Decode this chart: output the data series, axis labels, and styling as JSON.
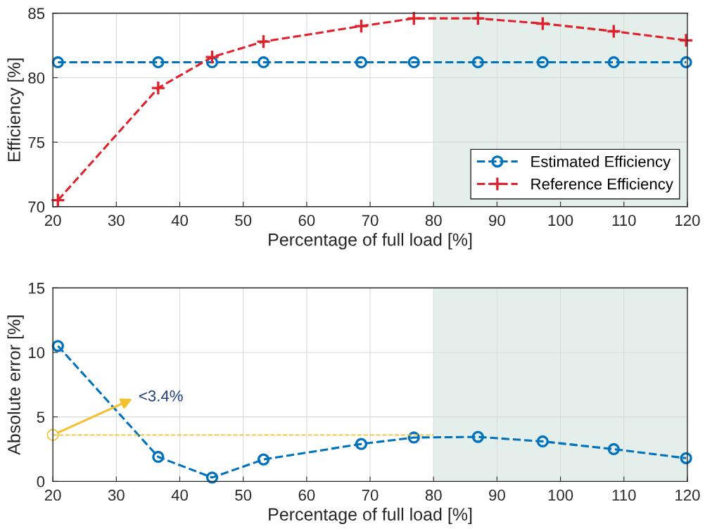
{
  "chart_data": [
    {
      "type": "line",
      "x": [
        20.8,
        36.6,
        45.1,
        53.2,
        68.6,
        76.9,
        87.0,
        97.2,
        108.4,
        119.8
      ],
      "xlabel": "Percentage of full load [%]",
      "ylabel": "Efficiency [%]",
      "xlim": [
        20,
        120
      ],
      "xticks": [
        20,
        30,
        40,
        50,
        60,
        70,
        80,
        90,
        100,
        110,
        120
      ],
      "ylim": [
        70,
        85
      ],
      "yticks": [
        70,
        75,
        80,
        85
      ],
      "grid": true,
      "legend": "bottom right",
      "line_style": "dashed",
      "bands": [
        {
          "axis": "x",
          "from": 80,
          "to": 120,
          "color": "#e4eeea"
        }
      ],
      "series": [
        {
          "name": "Estimated Efficiency",
          "color": "#0072bd",
          "marker": "circle",
          "values": [
            81.2,
            81.2,
            81.2,
            81.2,
            81.2,
            81.2,
            81.2,
            81.2,
            81.2,
            81.2
          ]
        },
        {
          "name": "Reference Efficiency",
          "color": "#e0202a",
          "marker": "cross",
          "values": [
            70.5,
            79.2,
            81.6,
            82.8,
            84.0,
            84.6,
            84.6,
            84.2,
            83.6,
            82.9
          ]
        }
      ]
    },
    {
      "type": "line",
      "x": [
        20.8,
        36.6,
        45.1,
        53.2,
        68.6,
        76.9,
        87.0,
        97.2,
        108.4,
        119.8
      ],
      "xlabel": "Percentage of full load [%]",
      "ylabel": "Absolute error [%]",
      "xlim": [
        20,
        120
      ],
      "xticks": [
        20,
        30,
        40,
        50,
        60,
        70,
        80,
        90,
        100,
        110,
        120
      ],
      "ylim": [
        0,
        15
      ],
      "yticks": [
        0,
        5,
        10,
        15
      ],
      "grid": true,
      "line_style": "dashed",
      "bands": [
        {
          "axis": "x",
          "from": 80,
          "to": 120,
          "color": "#e4eeea"
        }
      ],
      "annotations": [
        "<3.4%"
      ],
      "series": [
        {
          "color": "#0072bd",
          "marker": "circle",
          "values": [
            10.5,
            1.9,
            0.3,
            1.7,
            2.9,
            3.4,
            3.45,
            3.1,
            2.5,
            1.8
          ]
        },
        {
          "type": "line",
          "color": "#f5c02a",
          "marker": "circle",
          "line_style": "dashed",
          "x": [
            20,
            80
          ],
          "values": [
            3.6,
            3.6
          ]
        }
      ]
    }
  ]
}
